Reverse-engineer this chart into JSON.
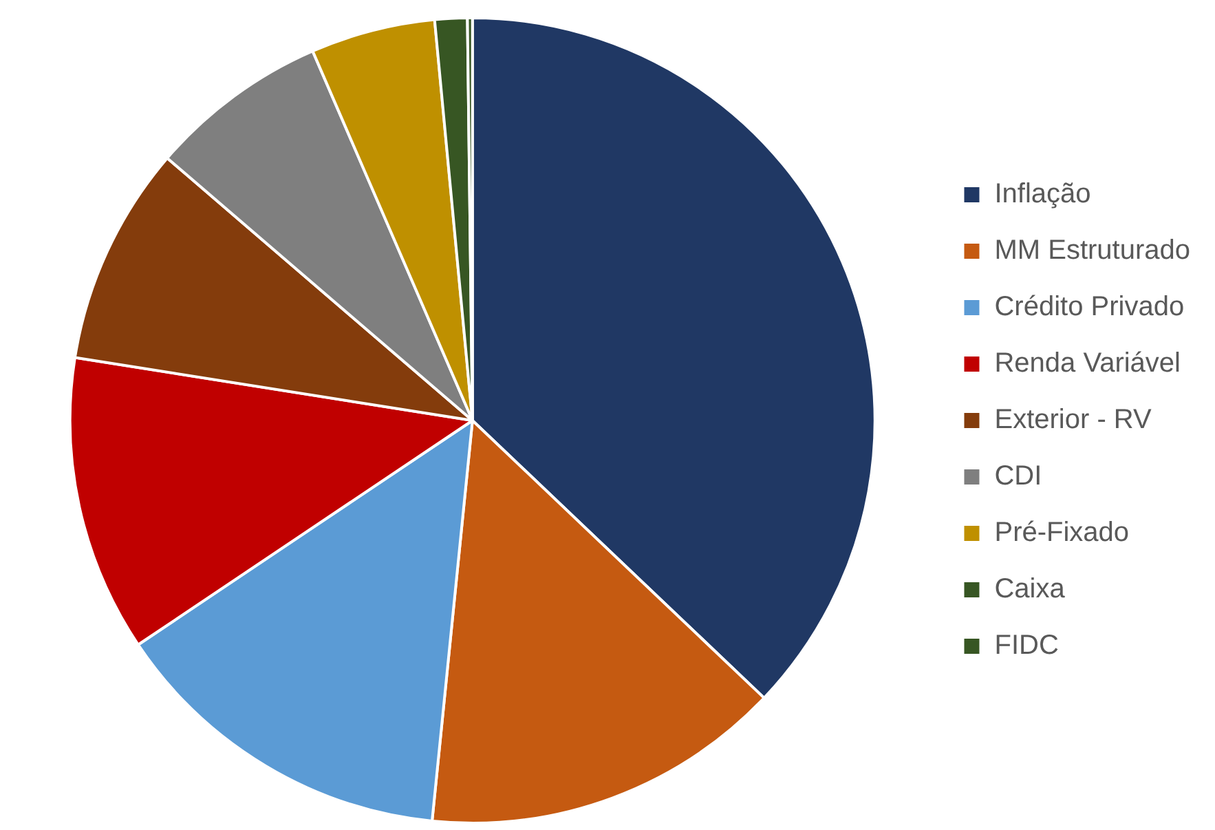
{
  "chart_data": {
    "type": "pie",
    "categories": [
      "Inflação",
      "MM Estruturado",
      "Crédito Privado",
      "Renda Variável",
      "Exterior - RV",
      "CDI",
      "Pré-Fixado",
      "Caixa",
      "FIDC"
    ],
    "values": [
      37.1,
      14.5,
      14.0,
      11.9,
      8.8,
      7.2,
      5.0,
      1.3,
      0.2
    ],
    "colors": [
      "#203864",
      "#c55a11",
      "#5b9bd5",
      "#c00000",
      "#843c0c",
      "#7f7f7f",
      "#bf9000",
      "#375623",
      "#375623"
    ],
    "legend": "right"
  }
}
